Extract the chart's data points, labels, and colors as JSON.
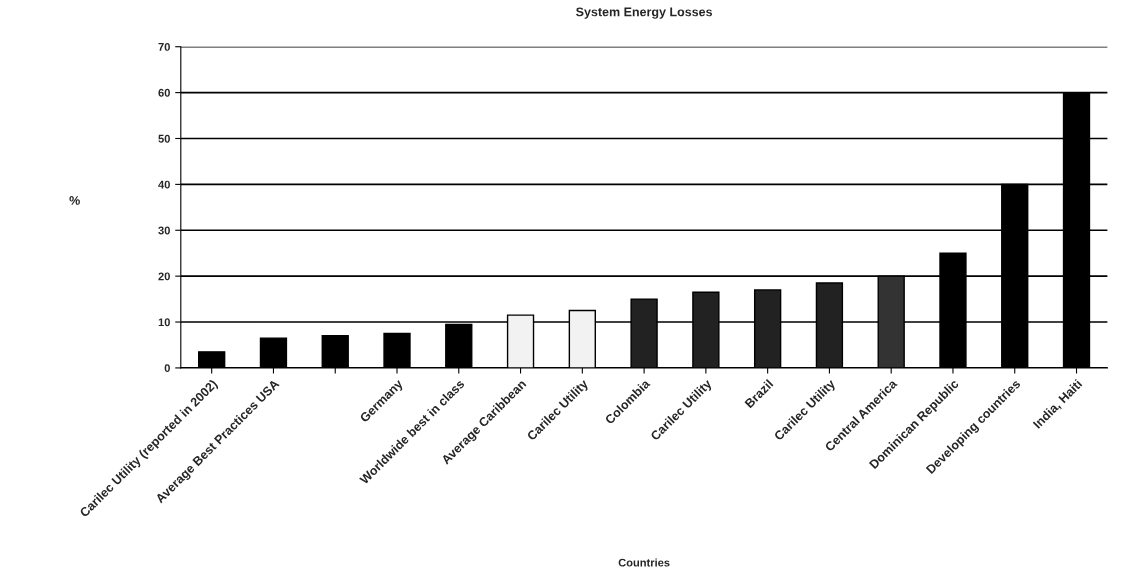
{
  "chart_data": {
    "type": "bar",
    "title": "System Energy Losses",
    "xlabel": "Countries",
    "ylabel": "%",
    "categories": [
      "Carilec Utility (reported in 2002)",
      "Average Best Practices USA",
      null,
      "Germany",
      "Worldwide best in class",
      "Average Caribbean",
      "Carilec Utility",
      "Colombia",
      "Carilec Utility",
      "Brazil",
      "Carilec Utility",
      "Central America",
      "Dominican Republic",
      "Developing countries",
      "India, Haiti"
    ],
    "values": [
      3.5,
      6.5,
      7,
      7.5,
      9.5,
      11.5,
      12.5,
      15,
      16.5,
      17,
      18.5,
      20,
      25,
      40,
      60
    ],
    "colors": [
      "#000000",
      "#000000",
      "#000000",
      "#000000",
      "#000000",
      "#f2f2f2",
      "#f2f2f2",
      "#222222",
      "#222222",
      "#222222",
      "#222222",
      "#333333",
      "#000000",
      "#000000",
      "#000000"
    ],
    "ylim": [
      0,
      70
    ],
    "yticks": [
      0,
      10,
      20,
      30,
      40,
      50,
      60,
      70
    ],
    "grid": "y",
    "legend": false
  }
}
